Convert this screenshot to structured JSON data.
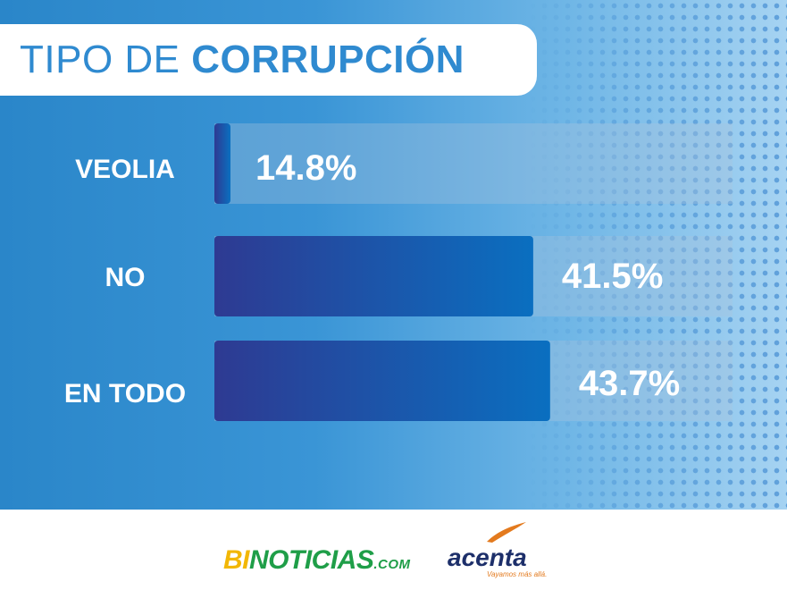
{
  "header": {
    "title_light": "TIPO DE",
    "title_bold": "CORRUPCIÓN"
  },
  "chart_data": {
    "type": "bar",
    "orientation": "horizontal",
    "title": "TIPO DE CORRUPCIÓN",
    "categories": [
      "VEOLIA",
      "NO",
      "EN TODO"
    ],
    "values": [
      14.8,
      41.5,
      43.7
    ],
    "value_labels": [
      "14.8%",
      "41.5%",
      "43.7%"
    ],
    "xlim": [
      0,
      100
    ],
    "unit": "%",
    "grid": false,
    "legend": "none"
  },
  "colors": {
    "bar_start": "#2e3a92",
    "bar_end": "#0a6fc0",
    "track": "rgba(170,195,220,0.35)",
    "label_text": "#ffffff",
    "title_text": "#2f8ad0"
  },
  "footer": {
    "logo_bi": "BI",
    "logo_noticias": "NOTICIAS",
    "logo_com": ".COM",
    "logo_acenta": "acenta",
    "acenta_slogan": "Vayamos más allá."
  }
}
